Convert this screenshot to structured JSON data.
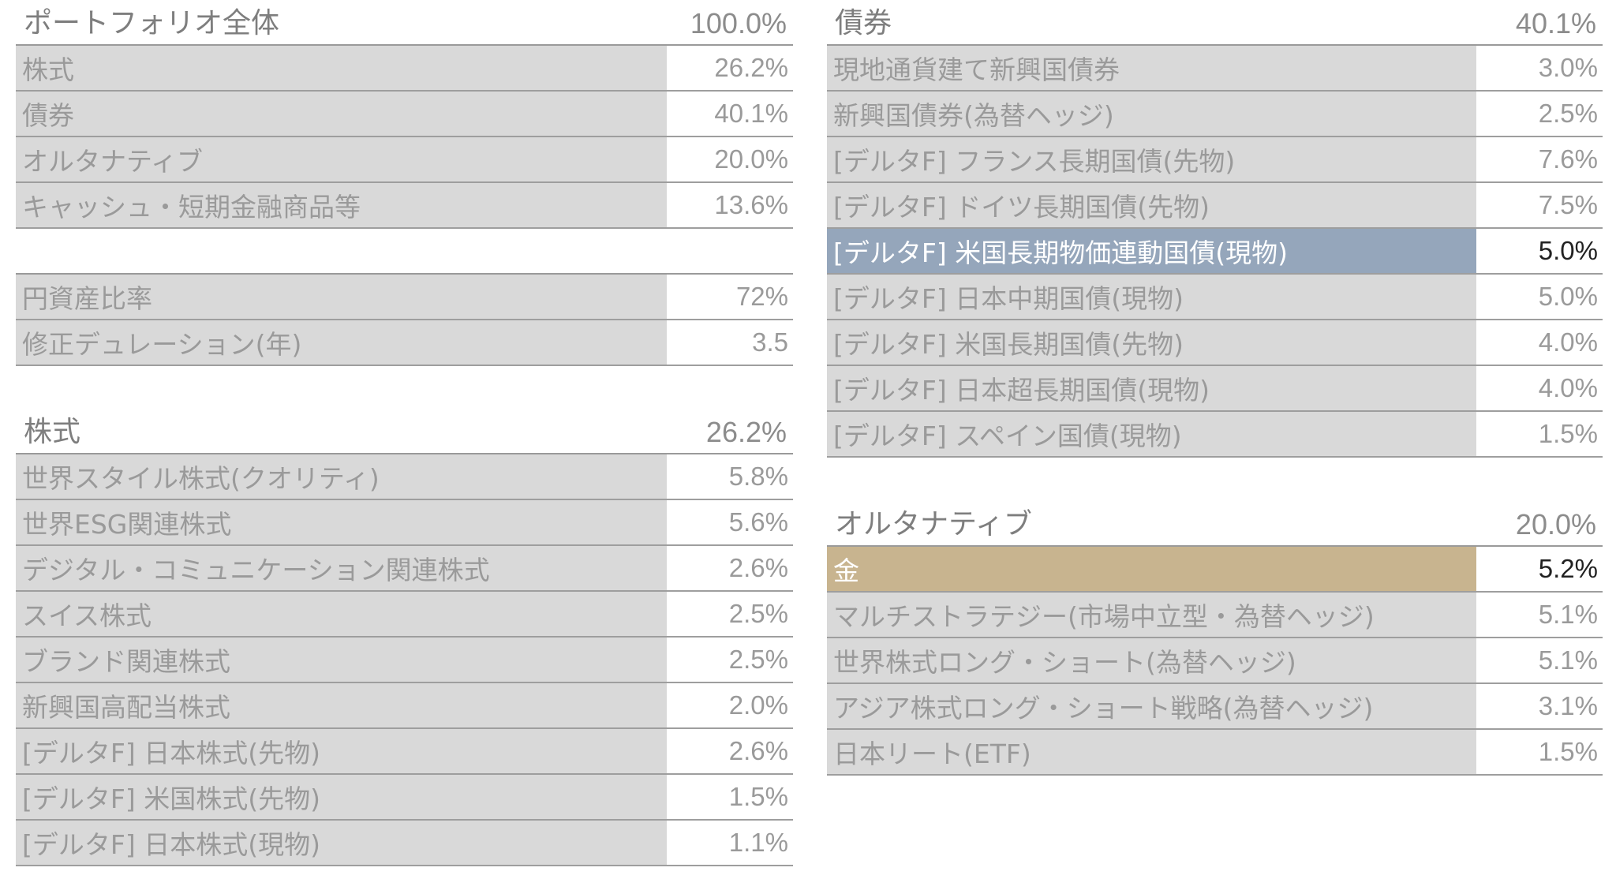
{
  "portfolio": {
    "title": "ポートフォリオ全体",
    "total": "100.0%",
    "rows": [
      {
        "name": "株式",
        "value": "26.2%"
      },
      {
        "name": "債券",
        "value": "40.1%"
      },
      {
        "name": "オルタナティブ",
        "value": "20.0%"
      },
      {
        "name": "キャッシュ・短期金融商品等",
        "value": "13.6%"
      }
    ]
  },
  "metrics": {
    "rows": [
      {
        "name": "円資産比率",
        "value": "72%"
      },
      {
        "name": "修正デュレーション(年)",
        "value": "3.5"
      }
    ]
  },
  "equity": {
    "title": "株式",
    "total": "26.2%",
    "rows": [
      {
        "name": "世界スタイル株式(クオリティ)",
        "value": "5.8%"
      },
      {
        "name": "世界ESG関連株式",
        "value": "5.6%"
      },
      {
        "name": "デジタル・コミュニケーション関連株式",
        "value": "2.6%"
      },
      {
        "name": "スイス株式",
        "value": "2.5%"
      },
      {
        "name": "ブランド関連株式",
        "value": "2.5%"
      },
      {
        "name": "新興国高配当株式",
        "value": "2.0%"
      },
      {
        "name": "[デルタF] 日本株式(先物)",
        "value": "2.6%"
      },
      {
        "name": "[デルタF] 米国株式(先物)",
        "value": "1.5%"
      },
      {
        "name": "[デルタF] 日本株式(現物)",
        "value": "1.1%"
      }
    ]
  },
  "bonds": {
    "title": "債券",
    "total": "40.1%",
    "rows": [
      {
        "name": "現地通貨建て新興国債券",
        "value": "3.0%"
      },
      {
        "name": "新興国債券(為替ヘッジ)",
        "value": "2.5%"
      },
      {
        "name": "[デルタF] フランス長期国債(先物)",
        "value": "7.6%"
      },
      {
        "name": "[デルタF] ドイツ長期国債(先物)",
        "value": "7.5%"
      },
      {
        "name": "[デルタF] 米国長期物価連動国債(現物)",
        "value": "5.0%",
        "highlight": "blue"
      },
      {
        "name": "[デルタF] 日本中期国債(現物)",
        "value": "5.0%"
      },
      {
        "name": "[デルタF] 米国長期国債(先物)",
        "value": "4.0%"
      },
      {
        "name": "[デルタF] 日本超長期国債(現物)",
        "value": "4.0%"
      },
      {
        "name": "[デルタF] スペイン国債(現物)",
        "value": "1.5%"
      }
    ]
  },
  "alternatives": {
    "title": "オルタナティブ",
    "total": "20.0%",
    "rows": [
      {
        "name": "金",
        "value": "5.2%",
        "highlight": "gold"
      },
      {
        "name": "マルチストラテジー(市場中立型・為替ヘッジ)",
        "value": "5.1%"
      },
      {
        "name": "世界株式ロング・ショート(為替ヘッジ)",
        "value": "5.1%"
      },
      {
        "name": "アジア株式ロング・ショート戦略(為替ヘッジ)",
        "value": "3.1%"
      },
      {
        "name": "日本リート(ETF)",
        "value": "1.5%"
      }
    ]
  },
  "colors": {
    "row_bg": "#d9d9d9",
    "highlight_blue": "#95a6bb",
    "highlight_gold": "#c8b48f"
  }
}
